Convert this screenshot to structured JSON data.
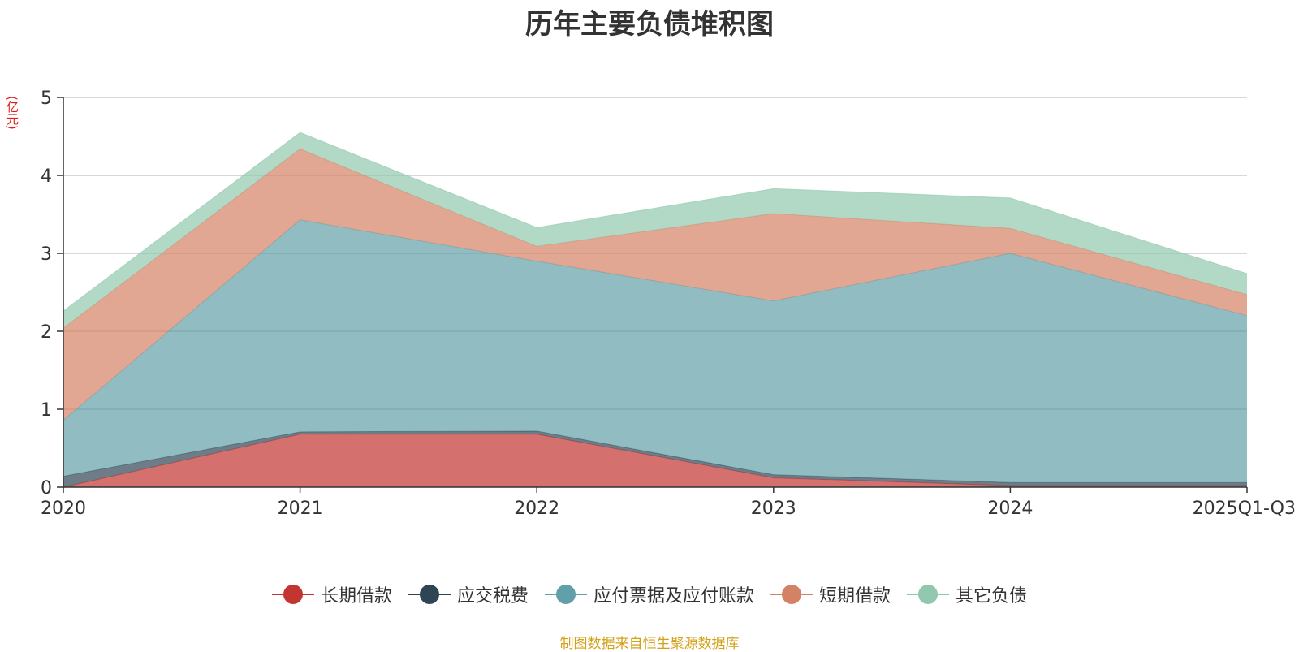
{
  "chart_data": {
    "type": "area",
    "stacked": true,
    "title": "历年主要负债堆积图",
    "ylabel": "(亿元)",
    "xlabel": "",
    "categories": [
      "2020",
      "2021",
      "2022",
      "2023",
      "2024",
      "2025Q1-Q3"
    ],
    "ylim": [
      0,
      5
    ],
    "yticks": [
      0,
      1,
      2,
      3,
      4,
      5
    ],
    "grid": true,
    "legend_position": "bottom",
    "series": [
      {
        "name": "长期借款",
        "color": "#c23531",
        "values": [
          0.0,
          0.68,
          0.68,
          0.12,
          0.02,
          0.02
        ]
      },
      {
        "name": "应交税费",
        "color": "#2f4554",
        "values": [
          0.14,
          0.03,
          0.04,
          0.04,
          0.04,
          0.04
        ]
      },
      {
        "name": "应付票据及应付账款",
        "color": "#61a0a8",
        "values": [
          0.72,
          2.72,
          2.18,
          2.23,
          2.94,
          2.14
        ]
      },
      {
        "name": "短期借款",
        "color": "#d48265",
        "values": [
          1.18,
          0.91,
          0.19,
          1.12,
          0.32,
          0.27
        ]
      },
      {
        "name": "其它负债",
        "color": "#91c7ae",
        "values": [
          0.22,
          0.21,
          0.24,
          0.32,
          0.39,
          0.27
        ]
      }
    ]
  },
  "footer": {
    "source": "制图数据来自恒生聚源数据库"
  }
}
